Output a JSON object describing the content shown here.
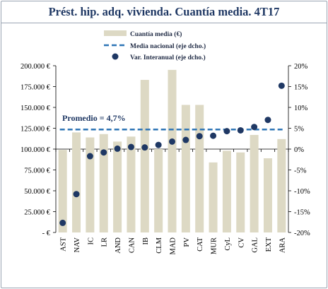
{
  "title": "Prést. hip. adq. vivienda. Cuantía media. 4T17",
  "legend": {
    "bar": "Cuantía media (€)",
    "line": "Media nacional (eje dcho.)",
    "dot": "Var. Interanual (eje dcho.)"
  },
  "annotation": "Promedio = 4,7%",
  "colors": {
    "bar": "#ddd9c4",
    "line": "#2e75b6",
    "dot": "#1f3864",
    "title": "#1f3864"
  },
  "chart_data": {
    "type": "bar",
    "categories": [
      "AST",
      "NAV",
      "IC",
      "LR",
      "AND",
      "CAN",
      "IB",
      "CLM",
      "MAD",
      "PV",
      "CAT",
      "MUR",
      "CyL",
      "CV",
      "GAL",
      "EXT",
      "ARA"
    ],
    "series": [
      {
        "name": "Cuantía media (€)",
        "axis": "left",
        "type": "bar",
        "values": [
          99000,
          120000,
          114000,
          118000,
          109000,
          115000,
          183000,
          100000,
          195000,
          153000,
          153000,
          84000,
          98000,
          96000,
          117000,
          89000,
          112000
        ]
      },
      {
        "name": "Media nacional (eje dcho.)",
        "axis": "right",
        "type": "line",
        "values": [
          4.7,
          4.7,
          4.7,
          4.7,
          4.7,
          4.7,
          4.7,
          4.7,
          4.7,
          4.7,
          4.7,
          4.7,
          4.7,
          4.7,
          4.7,
          4.7,
          4.7
        ]
      },
      {
        "name": "Var. Interanual (eje dcho.)",
        "axis": "right",
        "type": "scatter",
        "values": [
          -17.7,
          -10.8,
          -1.7,
          -0.8,
          0.1,
          0.5,
          0.4,
          1.0,
          1.8,
          2.2,
          3.1,
          3.2,
          4.3,
          4.5,
          5.3,
          7.0,
          15.2
        ]
      }
    ],
    "y_left": {
      "min": 0,
      "max": 200000,
      "step": 25000,
      "ticks": [
        "-  €",
        "25.000  €",
        "50.000  €",
        "75.000  €",
        "100.000  €",
        "125.000  €",
        "150.000  €",
        "175.000  €",
        "200.000  €"
      ]
    },
    "y_right": {
      "min": -20,
      "max": 20,
      "step": 5,
      "ticks": [
        "-20%",
        "-15%",
        "-10%",
        "-5%",
        "0%",
        "5%",
        "10%",
        "15%",
        "20%"
      ]
    },
    "grid": false,
    "legend_position": "top-center"
  }
}
